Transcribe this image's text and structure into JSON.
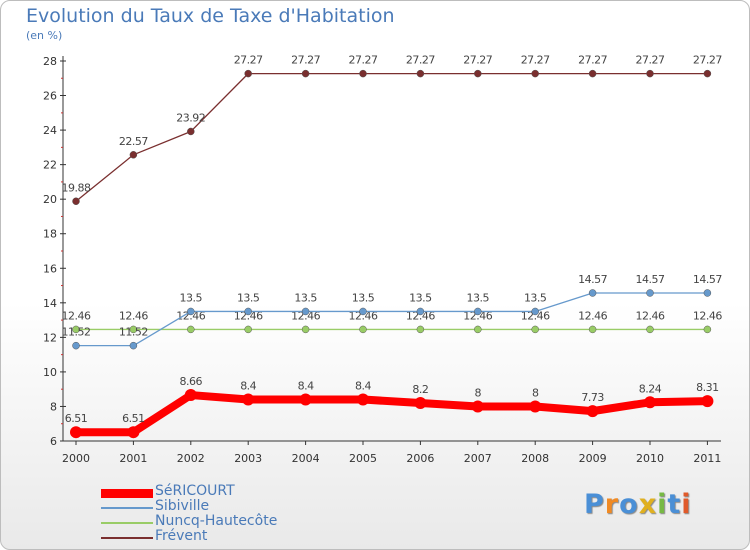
{
  "header": {
    "title": "Evolution du Taux de Taxe d'Habitation",
    "unit": "(en %)"
  },
  "chart_data": {
    "type": "line",
    "x": [
      "2000",
      "2001",
      "2002",
      "2003",
      "2004",
      "2005",
      "2006",
      "2007",
      "2008",
      "2009",
      "2010",
      "2011"
    ],
    "ylim": [
      6,
      28
    ],
    "yticks": [
      "6",
      "8",
      "10",
      "12",
      "14",
      "16",
      "18",
      "20",
      "22",
      "24",
      "26",
      "28"
    ],
    "grid": false,
    "legend_position": "bottom-left",
    "series": [
      {
        "name": "SéRICOURT",
        "color": "#ff0000",
        "values": [
          6.51,
          6.51,
          8.66,
          8.4,
          8.4,
          8.4,
          8.2,
          8,
          8,
          7.73,
          8.24,
          8.31
        ],
        "labels": [
          "6.51",
          "6.51",
          "8.66",
          "8.4",
          "8.4",
          "8.4",
          "8.2",
          "8",
          "8",
          "7.73",
          "8.24",
          "8.31"
        ]
      },
      {
        "name": "Sibiville",
        "color": "#6699cc",
        "values": [
          11.52,
          11.52,
          13.5,
          13.5,
          13.5,
          13.5,
          13.5,
          13.5,
          13.5,
          14.57,
          14.57,
          14.57
        ],
        "labels": [
          "11.52",
          "11.52",
          "13.5",
          "13.5",
          "13.5",
          "13.5",
          "13.5",
          "13.5",
          "13.5",
          "14.57",
          "14.57",
          "14.57"
        ]
      },
      {
        "name": "Nuncq-Hautecôte",
        "color": "#99cc66",
        "values": [
          12.46,
          12.46,
          12.46,
          12.46,
          12.46,
          12.46,
          12.46,
          12.46,
          12.46,
          12.46,
          12.46,
          12.46
        ],
        "labels": [
          "12.46",
          "12.46",
          "12.46",
          "12.46",
          "12.46",
          "12.46",
          "12.46",
          "12.46",
          "12.46",
          "12.46",
          "12.46",
          "12.46"
        ]
      },
      {
        "name": "Frévent",
        "color": "#7a2f2f",
        "values": [
          19.88,
          22.57,
          23.92,
          27.27,
          27.27,
          27.27,
          27.27,
          27.27,
          27.27,
          27.27,
          27.27,
          27.27
        ],
        "labels": [
          "19.88",
          "22.57",
          "23.92",
          "27.27",
          "27.27",
          "27.27",
          "27.27",
          "27.27",
          "27.27",
          "27.27",
          "27.27",
          "27.27"
        ]
      }
    ]
  },
  "logo": {
    "letters": [
      "P",
      "r",
      "o",
      "x",
      "i",
      "t",
      "i"
    ],
    "colors": [
      "#4a8fd6",
      "#f08a24",
      "#4a8fd6",
      "#e0b020",
      "#77b944",
      "#4a8fd6",
      "#e05a2a"
    ]
  }
}
